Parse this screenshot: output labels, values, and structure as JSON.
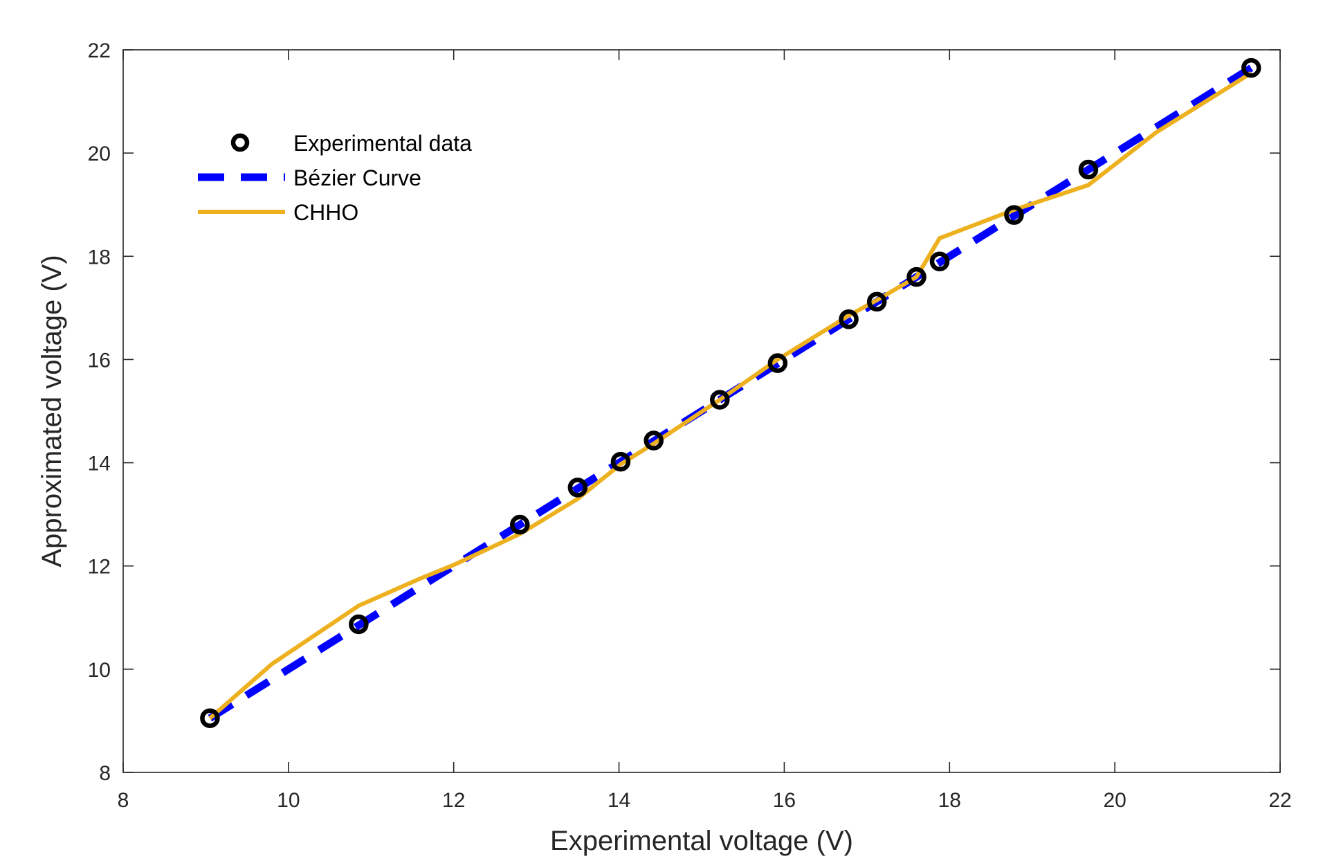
{
  "chart_data": {
    "type": "line",
    "title": "",
    "xlabel": "Experimental voltage (V)",
    "ylabel": "Approximated voltage (V)",
    "xlim": [
      8,
      22
    ],
    "ylim": [
      8,
      22
    ],
    "xticks": [
      8,
      10,
      12,
      14,
      16,
      18,
      20,
      22
    ],
    "yticks": [
      8,
      10,
      12,
      14,
      16,
      18,
      20,
      22
    ],
    "xtick_labels": [
      "8",
      "10",
      "12",
      "14",
      "16",
      "18",
      "20",
      "22"
    ],
    "ytick_labels": [
      "8",
      "10",
      "12",
      "14",
      "16",
      "18",
      "20",
      "22"
    ],
    "grid": false,
    "legend_position": "top-left",
    "series": [
      {
        "name": "Experimental data",
        "style": "markers",
        "color": "#000000",
        "x": [
          9.05,
          10.85,
          12.8,
          13.5,
          14.02,
          14.42,
          15.22,
          15.92,
          16.78,
          17.12,
          17.6,
          17.88,
          18.78,
          19.68,
          21.65
        ],
        "y": [
          9.05,
          10.87,
          12.8,
          13.52,
          14.02,
          14.43,
          15.22,
          15.93,
          16.78,
          17.12,
          17.6,
          17.9,
          18.8,
          19.68,
          21.65
        ]
      },
      {
        "name": "Bézier Curve",
        "style": "dashed",
        "color": "#0000FF",
        "x": [
          9.05,
          21.65
        ],
        "y": [
          9.05,
          21.65
        ]
      },
      {
        "name": "CHHO",
        "style": "solid",
        "color": "#EDB120",
        "x": [
          9.05,
          9.8,
          10.85,
          11.6,
          12.0,
          12.8,
          13.5,
          14.02,
          14.42,
          15.22,
          15.92,
          16.78,
          17.12,
          17.6,
          17.88,
          18.78,
          19.68,
          20.5,
          21.65
        ],
        "y": [
          9.05,
          10.1,
          11.23,
          11.76,
          12.02,
          12.62,
          13.3,
          13.97,
          14.37,
          15.22,
          16.0,
          16.85,
          17.15,
          17.6,
          18.35,
          18.9,
          19.38,
          20.4,
          21.55
        ]
      }
    ]
  }
}
